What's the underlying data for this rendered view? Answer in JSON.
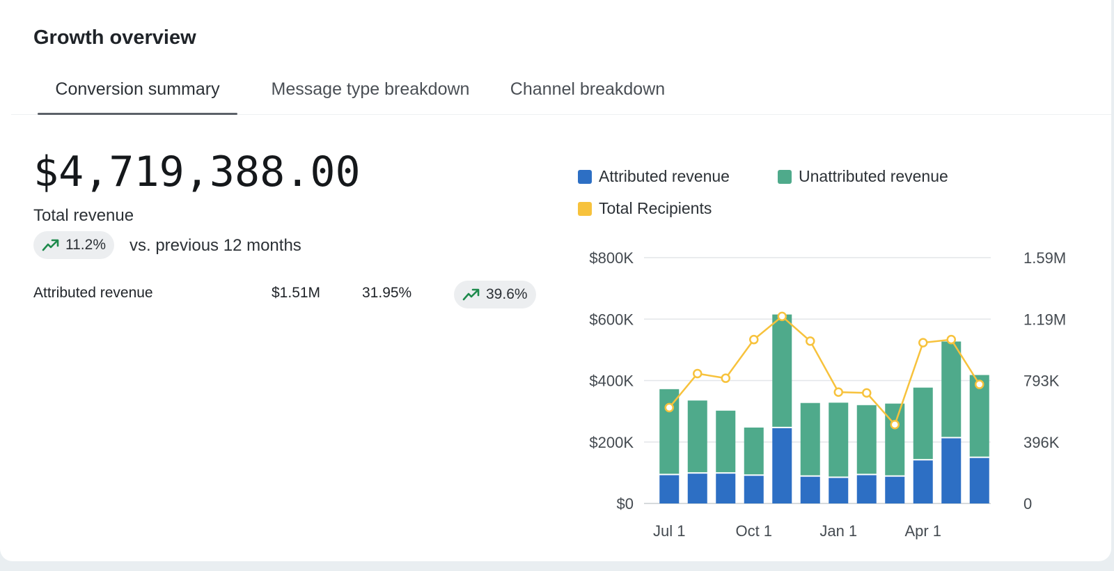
{
  "card": {
    "title": "Growth overview"
  },
  "tabs": [
    {
      "label": "Conversion summary",
      "active": true
    },
    {
      "label": "Message type breakdown",
      "active": false
    },
    {
      "label": "Channel breakdown",
      "active": false
    }
  ],
  "summary": {
    "total_value": "$4,719,388.00",
    "total_label": "Total revenue",
    "change_pct": "11.2%",
    "change_text": "vs. previous 12 months",
    "trend_icon": "trending-up-icon"
  },
  "attributed_row": {
    "label": "Attributed revenue",
    "amount": "$1.51M",
    "share": "31.95%",
    "change_pct": "39.6%"
  },
  "colors": {
    "attributed": "#2d6fc4",
    "unattributed": "#4faa8b",
    "recipients": "#f7c23c",
    "trend_up": "#1e8a4c"
  },
  "chart_data": {
    "type": "bar",
    "legend": [
      "Attributed revenue",
      "Unattributed revenue",
      "Total Recipients"
    ],
    "legend_placement": "top",
    "x_ticks": [
      "Jul 1",
      "Oct 1",
      "Jan 1",
      "Apr 1"
    ],
    "x_tick_indices": [
      0,
      3,
      6,
      9
    ],
    "y_left_ticks": [
      "$0",
      "$200K",
      "$400K",
      "$600K",
      "$800K"
    ],
    "y_left_range": [
      0,
      800000
    ],
    "y_right_ticks": [
      "0",
      "396K",
      "793K",
      "1.19M",
      "1.59M"
    ],
    "y_right_range": [
      0,
      1590000
    ],
    "grid": true,
    "series": [
      {
        "name": "Attributed revenue",
        "kind": "stacked-bar",
        "values": [
          92000,
          97000,
          97000,
          90000,
          245000,
          87000,
          83000,
          92000,
          87000,
          140000,
          212000,
          148000
        ]
      },
      {
        "name": "Unattributed revenue",
        "kind": "stacked-bar",
        "values": [
          280000,
          238000,
          205000,
          157000,
          370000,
          240000,
          245000,
          228000,
          238000,
          237000,
          315000,
          270000
        ]
      },
      {
        "name": "Total Recipients",
        "kind": "line",
        "axis": "right",
        "values": [
          620000,
          840000,
          810000,
          1060000,
          1210000,
          1050000,
          720000,
          715000,
          510000,
          1040000,
          1060000,
          770000
        ]
      }
    ]
  }
}
